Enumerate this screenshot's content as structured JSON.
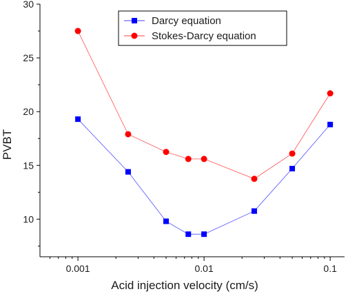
{
  "chart_data": {
    "type": "line",
    "xlabel": "Acid injection velocity (cm/s)",
    "ylabel": "PVBT",
    "xscale": "log",
    "xlim": [
      0.0005,
      0.13
    ],
    "ylim": [
      6.5,
      30
    ],
    "xticks": [
      0.001,
      0.01,
      0.1
    ],
    "xtick_labels": [
      "0.001",
      "0.01",
      "0.1"
    ],
    "yticks": [
      10,
      15,
      20,
      25,
      30
    ],
    "ytick_labels": [
      "10",
      "15",
      "20",
      "25",
      "30"
    ],
    "grid": false,
    "legend_position": "top-right",
    "series": [
      {
        "name": "Darcy equation",
        "color": "#0000ff",
        "marker": "square",
        "x": [
          0.001,
          0.0025,
          0.005,
          0.0075,
          0.01,
          0.025,
          0.05,
          0.1
        ],
        "y": [
          19.3,
          14.4,
          9.8,
          8.6,
          8.6,
          10.75,
          14.7,
          18.8
        ]
      },
      {
        "name": "Stokes-Darcy equation",
        "color": "#ff0000",
        "marker": "circle",
        "x": [
          0.001,
          0.0025,
          0.005,
          0.0075,
          0.01,
          0.025,
          0.05,
          0.1
        ],
        "y": [
          27.5,
          17.9,
          16.25,
          15.6,
          15.6,
          13.75,
          16.1,
          21.7
        ]
      }
    ]
  }
}
